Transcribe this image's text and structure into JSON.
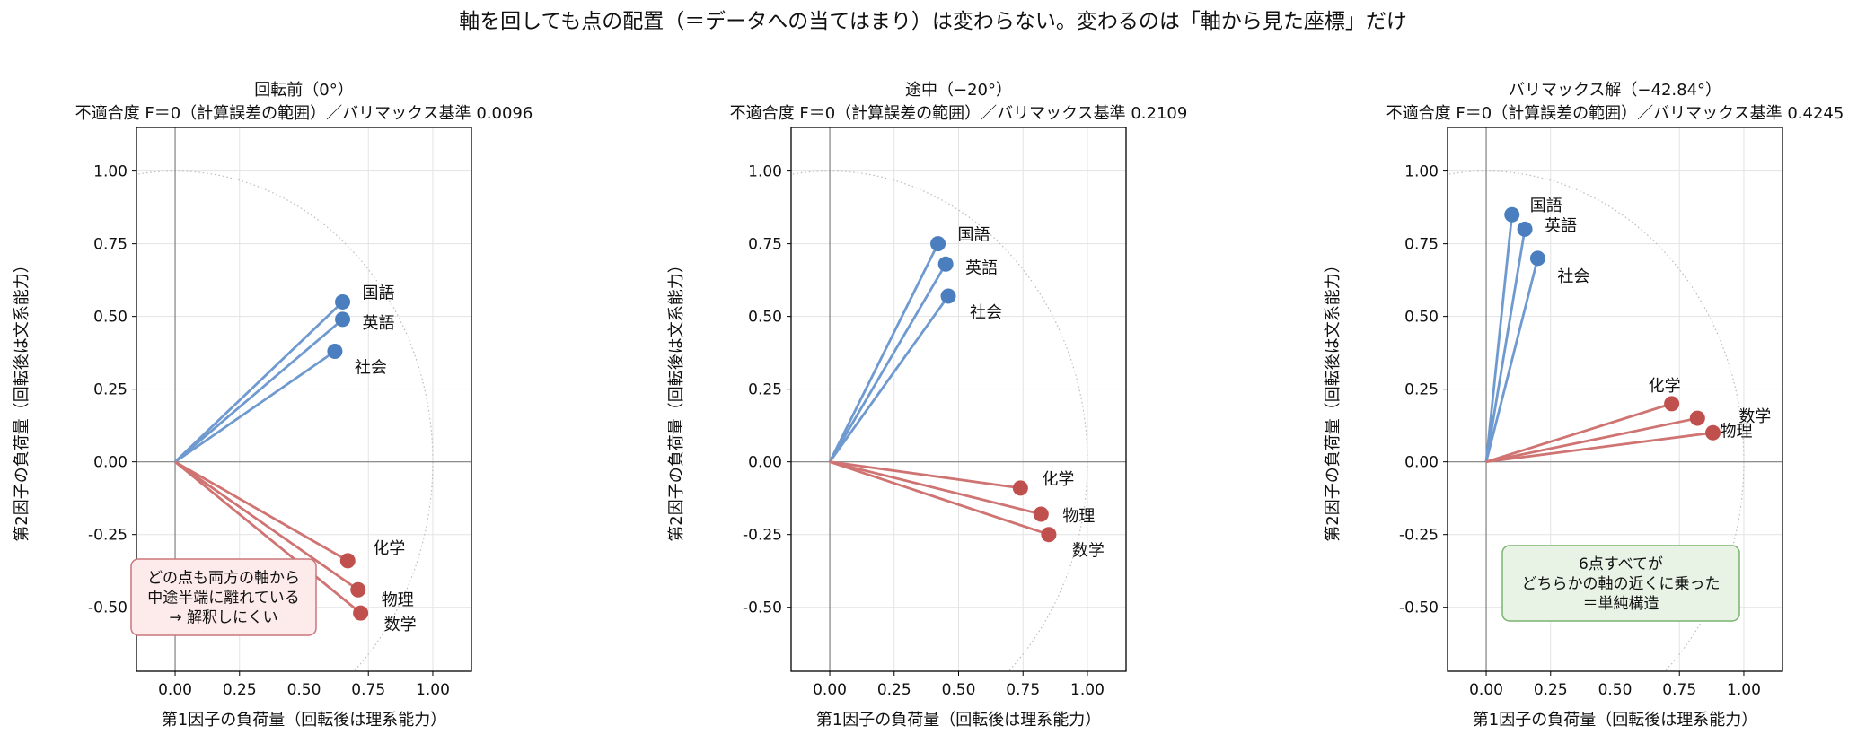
{
  "figure_title": "軸を回しても点の配置（＝データへの当てはまり）は変わらない。変わるのは「軸から見た座標」だけ",
  "colors": {
    "blue": "#4a7ebf",
    "blue_line": "#6f9ad0",
    "red": "#c0504d",
    "red_line": "#cf7472",
    "frame": "#000000",
    "grid": "#e3e3e3",
    "zero_line": "#808080",
    "unit_circle": "#bbbbbb",
    "note_red_fill": "#fdeaea",
    "note_red_border": "#c9777a",
    "note_green_fill": "#e8f3e6",
    "note_green_border": "#78b36f"
  },
  "chart_data": [
    {
      "type": "scatter",
      "title": "回転前（0°）",
      "subtitle": "不適合度 F＝0（計算誤差の範囲）／バリマックス基準 0.0096",
      "xlabel": "第1因子の負荷量（回転後は理系能力）",
      "ylabel": "第2因子の負荷量（回転後は文系能力）",
      "xlim": [
        -0.15,
        1.15
      ],
      "ylim": [
        -0.72,
        1.15
      ],
      "xticks": [
        0.0,
        0.25,
        0.5,
        0.75,
        1.0
      ],
      "xtick_labels": [
        "0.00",
        "0.25",
        "0.50",
        "0.75",
        "1.00"
      ],
      "yticks": [
        -0.5,
        -0.25,
        0.0,
        0.25,
        0.5,
        0.75,
        1.0
      ],
      "ytick_labels": [
        "-0.50",
        "-0.25",
        "0.00",
        "0.25",
        "0.50",
        "0.75",
        "1.00"
      ],
      "grid": true,
      "unit_circle": true,
      "points": [
        {
          "label": "国語",
          "x": 0.65,
          "y": 0.55,
          "group": "blue"
        },
        {
          "label": "英語",
          "x": 0.65,
          "y": 0.49,
          "group": "blue"
        },
        {
          "label": "社会",
          "x": 0.62,
          "y": 0.38,
          "group": "blue"
        },
        {
          "label": "化学",
          "x": 0.67,
          "y": -0.34,
          "group": "red"
        },
        {
          "label": "物理",
          "x": 0.71,
          "y": -0.44,
          "group": "red"
        },
        {
          "label": "数学",
          "x": 0.72,
          "y": -0.52,
          "group": "red"
        }
      ],
      "annotation": {
        "lines": [
          "どの点も両方の軸から",
          "中途半端に離れている",
          "→ 解釈しにくい"
        ],
        "style": "red"
      }
    },
    {
      "type": "scatter",
      "title": "途中（−20°）",
      "subtitle": "不適合度 F＝0（計算誤差の範囲）／バリマックス基準 0.2109",
      "xlabel": "第1因子の負荷量（回転後は理系能力）",
      "ylabel": "第2因子の負荷量（回転後は文系能力）",
      "xlim": [
        -0.15,
        1.15
      ],
      "ylim": [
        -0.72,
        1.15
      ],
      "xticks": [
        0.0,
        0.25,
        0.5,
        0.75,
        1.0
      ],
      "xtick_labels": [
        "0.00",
        "0.25",
        "0.50",
        "0.75",
        "1.00"
      ],
      "yticks": [
        -0.5,
        -0.25,
        0.0,
        0.25,
        0.5,
        0.75,
        1.0
      ],
      "ytick_labels": [
        "-0.50",
        "-0.25",
        "0.00",
        "0.25",
        "0.50",
        "0.75",
        "1.00"
      ],
      "grid": true,
      "unit_circle": true,
      "points": [
        {
          "label": "国語",
          "x": 0.42,
          "y": 0.75,
          "group": "blue"
        },
        {
          "label": "英語",
          "x": 0.45,
          "y": 0.68,
          "group": "blue"
        },
        {
          "label": "社会",
          "x": 0.46,
          "y": 0.57,
          "group": "blue"
        },
        {
          "label": "化学",
          "x": 0.74,
          "y": -0.09,
          "group": "red"
        },
        {
          "label": "物理",
          "x": 0.82,
          "y": -0.18,
          "group": "red"
        },
        {
          "label": "数学",
          "x": 0.85,
          "y": -0.25,
          "group": "red"
        }
      ]
    },
    {
      "type": "scatter",
      "title": "バリマックス解（−42.84°）",
      "subtitle": "不適合度 F＝0（計算誤差の範囲）／バリマックス基準 0.4245",
      "xlabel": "第1因子の負荷量（回転後は理系能力）",
      "ylabel": "第2因子の負荷量（回転後は文系能力）",
      "xlim": [
        -0.15,
        1.15
      ],
      "ylim": [
        -0.72,
        1.15
      ],
      "xticks": [
        0.0,
        0.25,
        0.5,
        0.75,
        1.0
      ],
      "xtick_labels": [
        "0.00",
        "0.25",
        "0.50",
        "0.75",
        "1.00"
      ],
      "yticks": [
        -0.5,
        -0.25,
        0.0,
        0.25,
        0.5,
        0.75,
        1.0
      ],
      "ytick_labels": [
        "-0.50",
        "-0.25",
        "0.00",
        "0.25",
        "0.50",
        "0.75",
        "1.00"
      ],
      "grid": true,
      "unit_circle": true,
      "points": [
        {
          "label": "国語",
          "x": 0.1,
          "y": 0.85,
          "group": "blue"
        },
        {
          "label": "英語",
          "x": 0.15,
          "y": 0.8,
          "group": "blue"
        },
        {
          "label": "社会",
          "x": 0.2,
          "y": 0.7,
          "group": "blue"
        },
        {
          "label": "化学",
          "x": 0.72,
          "y": 0.2,
          "group": "red"
        },
        {
          "label": "数学",
          "x": 0.82,
          "y": 0.15,
          "group": "red"
        },
        {
          "label": "物理",
          "x": 0.88,
          "y": 0.1,
          "group": "red"
        }
      ],
      "annotation": {
        "lines": [
          "6点すべてが",
          "どちらかの軸の近くに乗った",
          "＝単純構造"
        ],
        "style": "green"
      }
    }
  ]
}
